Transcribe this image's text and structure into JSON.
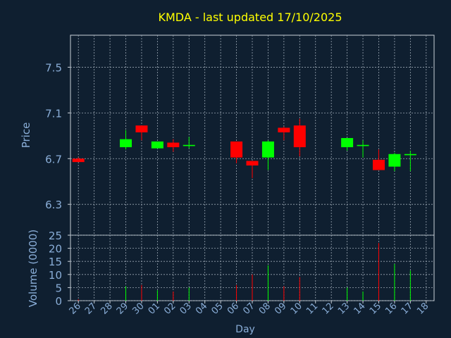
{
  "colors": {
    "background": "#0f1f30",
    "title": "#ffff00",
    "axis_text": "#8aaed8",
    "grid": "#9aa6b2",
    "frame": "#c8d0d8",
    "up": "#00ff00",
    "down": "#ff0000"
  },
  "chart_data": {
    "type": "candlestick",
    "title": "KMDA - last updated 17/10/2025",
    "xlabel": "Day",
    "price_panel": {
      "ylabel": "Price",
      "ylim": [
        6.03,
        7.78
      ],
      "yticks": [
        "6.3",
        "6.7",
        "7.1",
        "7.5"
      ],
      "grid": true
    },
    "volume_panel": {
      "ylabel": "Volume (0000)",
      "ylim": [
        0,
        25
      ],
      "yticks": [
        "0",
        "5",
        "10",
        "15",
        "20",
        "25"
      ],
      "grid": true
    },
    "x_tick_labels": [
      "26",
      "27",
      "28",
      "29",
      "30",
      "01",
      "02",
      "03",
      "04",
      "05",
      "06",
      "07",
      "08",
      "09",
      "10",
      "11",
      "12",
      "13",
      "14",
      "15",
      "16",
      "17",
      "18"
    ],
    "candles": [
      {
        "day": "26",
        "open": 6.7,
        "high": 6.71,
        "low": 6.67,
        "close": 6.67,
        "volume": 0.5
      },
      {
        "day": "29",
        "open": 6.8,
        "high": 6.95,
        "low": 6.78,
        "close": 6.87,
        "volume": 5.5
      },
      {
        "day": "30",
        "open": 6.99,
        "high": 6.99,
        "low": 6.86,
        "close": 6.93,
        "volume": 6.0
      },
      {
        "day": "01",
        "open": 6.79,
        "high": 6.85,
        "low": 6.79,
        "close": 6.85,
        "volume": 4.0
      },
      {
        "day": "02",
        "open": 6.84,
        "high": 6.87,
        "low": 6.76,
        "close": 6.8,
        "volume": 3.5
      },
      {
        "day": "03",
        "open": 6.81,
        "high": 6.89,
        "low": 6.79,
        "close": 6.82,
        "volume": 5.0
      },
      {
        "day": "06",
        "open": 6.85,
        "high": 6.85,
        "low": 6.66,
        "close": 6.71,
        "volume": 6.0
      },
      {
        "day": "07",
        "open": 6.68,
        "high": 6.68,
        "low": 6.53,
        "close": 6.64,
        "volume": 10.0
      },
      {
        "day": "08",
        "open": 6.71,
        "high": 6.86,
        "low": 6.6,
        "close": 6.85,
        "volume": 13.5
      },
      {
        "day": "09",
        "open": 6.97,
        "high": 6.98,
        "low": 6.86,
        "close": 6.93,
        "volume": 5.5
      },
      {
        "day": "10",
        "open": 6.99,
        "high": 7.05,
        "low": 6.72,
        "close": 6.8,
        "volume": 9.0
      },
      {
        "day": "13",
        "open": 6.8,
        "high": 6.88,
        "low": 6.77,
        "close": 6.88,
        "volume": 5.0
      },
      {
        "day": "14",
        "open": 6.81,
        "high": 6.86,
        "low": 6.71,
        "close": 6.82,
        "volume": 3.5
      },
      {
        "day": "15",
        "open": 6.69,
        "high": 6.78,
        "low": 6.6,
        "close": 6.6,
        "volume": 22.0
      },
      {
        "day": "16",
        "open": 6.63,
        "high": 6.75,
        "low": 6.59,
        "close": 6.74,
        "volume": 14.0
      },
      {
        "day": "17",
        "open": 6.73,
        "high": 6.77,
        "low": 6.59,
        "close": 6.74,
        "volume": 11.5
      }
    ]
  }
}
